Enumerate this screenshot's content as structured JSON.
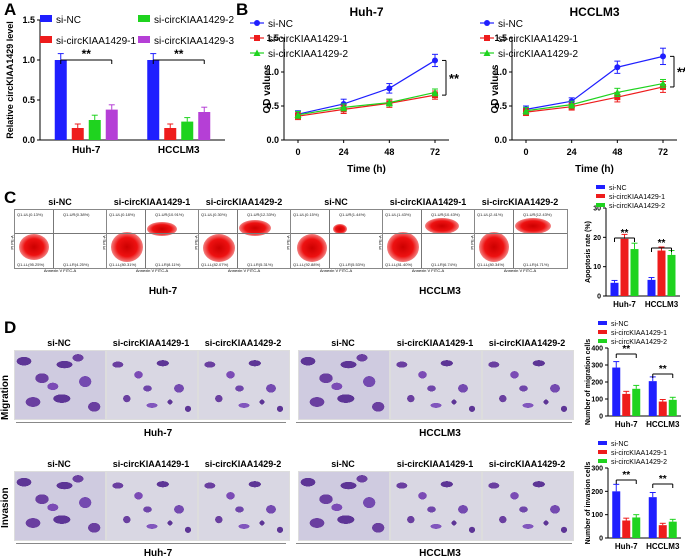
{
  "panels": {
    "A": "A",
    "B": "B",
    "C": "C",
    "D": "D"
  },
  "colors": {
    "si_nc": "#1f1fff",
    "kiaa1": "#ee1c1c",
    "kiaa2": "#1fd31f",
    "kiaa3": "#b53fd6"
  },
  "sig": "**",
  "chart_data": [
    {
      "id": "A",
      "type": "bar",
      "ylabel": "Relative circKIAA1429 level",
      "ylim": [
        0,
        1.5
      ],
      "yticks": [
        "0.0",
        "0.5",
        "1.0",
        "1.5"
      ],
      "categories": [
        "Huh-7",
        "HCCLM3"
      ],
      "legend": [
        "si-NC",
        "si-circKIAA1429-1",
        "si-circKIAA1429-2",
        "si-circKIAA1429-3"
      ],
      "series": [
        {
          "name": "si-NC",
          "values": [
            1.0,
            1.0
          ],
          "err": [
            0.08,
            0.08
          ]
        },
        {
          "name": "si-circKIAA1429-1",
          "values": [
            0.15,
            0.15
          ],
          "err": [
            0.05,
            0.05
          ]
        },
        {
          "name": "si-circKIAA1429-2",
          "values": [
            0.25,
            0.23
          ],
          "err": [
            0.06,
            0.05
          ]
        },
        {
          "name": "si-circKIAA1429-3",
          "values": [
            0.38,
            0.35
          ],
          "err": [
            0.06,
            0.06
          ]
        }
      ]
    },
    {
      "id": "B1",
      "type": "line",
      "title": "Huh-7",
      "xlabel": "Time (h)",
      "ylabel": "OD values",
      "ylim": [
        0,
        1.5
      ],
      "yticks": [
        "0.0",
        "0.5",
        "1.0",
        "1.5"
      ],
      "x": [
        "0",
        "24",
        "48",
        "72"
      ],
      "legend": [
        "si-NC",
        "si-circKIAA1429-1",
        "si-circKIAA1429-2"
      ],
      "series": [
        {
          "name": "si-NC",
          "values": [
            0.38,
            0.53,
            0.76,
            1.17
          ],
          "err": [
            0.05,
            0.07,
            0.07,
            0.09
          ]
        },
        {
          "name": "si-circKIAA1429-1",
          "values": [
            0.35,
            0.45,
            0.54,
            0.66
          ],
          "err": [
            0.05,
            0.06,
            0.06,
            0.06
          ]
        },
        {
          "name": "si-circKIAA1429-2",
          "values": [
            0.37,
            0.48,
            0.55,
            0.7
          ],
          "err": [
            0.05,
            0.05,
            0.05,
            0.05
          ]
        }
      ]
    },
    {
      "id": "B2",
      "type": "line",
      "title": "HCCLM3",
      "xlabel": "Time (h)",
      "ylabel": "OD values",
      "ylim": [
        0,
        1.5
      ],
      "yticks": [
        "0.0",
        "0.5",
        "1.0",
        "1.5"
      ],
      "x": [
        "0",
        "24",
        "48",
        "72"
      ],
      "legend": [
        "si-NC",
        "si-circKIAA1429-1",
        "si-circKIAA1429-2"
      ],
      "series": [
        {
          "name": "si-NC",
          "values": [
            0.45,
            0.57,
            1.07,
            1.23
          ],
          "err": [
            0.05,
            0.05,
            0.09,
            0.12
          ]
        },
        {
          "name": "si-circKIAA1429-1",
          "values": [
            0.41,
            0.49,
            0.63,
            0.78
          ],
          "err": [
            0.05,
            0.05,
            0.07,
            0.08
          ]
        },
        {
          "name": "si-circKIAA1429-2",
          "values": [
            0.43,
            0.52,
            0.7,
            0.83
          ],
          "err": [
            0.05,
            0.05,
            0.06,
            0.06
          ]
        }
      ]
    },
    {
      "id": "C",
      "type": "bar",
      "ylabel": "Apoptosis rate (%)",
      "ylim": [
        0,
        30
      ],
      "yticks": [
        "0",
        "10",
        "20",
        "30"
      ],
      "categories": [
        "Huh-7",
        "HCCLM3"
      ],
      "legend": [
        "si-NC",
        "si-circKIAA1429-1",
        "si-circKIAA1429-2"
      ],
      "series": [
        {
          "name": "si-NC",
          "values": [
            4.5,
            5.5
          ],
          "err": [
            0.8,
            0.8
          ]
        },
        {
          "name": "si-circKIAA1429-1",
          "values": [
            19.5,
            15.5
          ],
          "err": [
            1.5,
            1.2
          ]
        },
        {
          "name": "si-circKIAA1429-2",
          "values": [
            16,
            14
          ],
          "err": [
            2.0,
            1.5
          ]
        }
      ]
    },
    {
      "id": "D1",
      "type": "bar",
      "ylabel": "Number of migration cells",
      "ylim": [
        0,
        400
      ],
      "yticks": [
        "0",
        "100",
        "200",
        "300",
        "400"
      ],
      "categories": [
        "Huh-7",
        "HCCLM3"
      ],
      "legend": [
        "si-NC",
        "si-circKIAA1429-1",
        "si-circKIAA1429-2"
      ],
      "series": [
        {
          "name": "si-NC",
          "values": [
            285,
            205
          ],
          "err": [
            35,
            25
          ]
        },
        {
          "name": "si-circKIAA1429-1",
          "values": [
            130,
            85
          ],
          "err": [
            15,
            12
          ]
        },
        {
          "name": "si-circKIAA1429-2",
          "values": [
            160,
            95
          ],
          "err": [
            20,
            15
          ]
        }
      ]
    },
    {
      "id": "D2",
      "type": "bar",
      "ylabel": "Number of invasion cells",
      "ylim": [
        0,
        300
      ],
      "yticks": [
        "0",
        "100",
        "200",
        "300"
      ],
      "categories": [
        "Huh-7",
        "HCCLM3"
      ],
      "legend": [
        "si-NC",
        "si-circKIAA1429-1",
        "si-circKIAA1429-2"
      ],
      "series": [
        {
          "name": "si-NC",
          "values": [
            200,
            175
          ],
          "err": [
            30,
            20
          ]
        },
        {
          "name": "si-circKIAA1429-1",
          "values": [
            75,
            55
          ],
          "err": [
            10,
            8
          ]
        },
        {
          "name": "si-circKIAA1429-2",
          "values": [
            88,
            70
          ],
          "err": [
            12,
            10
          ]
        }
      ]
    }
  ],
  "flow": {
    "titles": [
      "si-NC",
      "si-circKIAA1429-1",
      "si-circKIAA1429-2",
      "si-NC",
      "si-circKIAA1429-1",
      "si-circKIAA1429-2"
    ],
    "quadrants": [
      [
        "Q1-UL(0.13%)",
        "Q1-UR(0.38%)",
        "Q1-LL(95.25%)",
        "Q1-LR(4.25%)"
      ],
      [
        "Q1-UL(0.18%)",
        "Q1-UR(10.91%)",
        "Q1-LL(80.31%)",
        "Q1-LR(8.11%)"
      ],
      [
        "Q1-UL(0.30%)",
        "Q1-UR(12.33%)",
        "Q1-LL(82.07%)",
        "Q1-LR(5.31%)"
      ],
      [
        "Q1-UL(0.15%)",
        "Q1-UR(1.44%)",
        "Q1-LL(92.88%)",
        "Q1-LR(5.53%)"
      ],
      [
        "Q1-UL(1.43%)",
        "Q1-UR(10.43%)",
        "Q1-LL(81.40%)",
        "Q1-LR(6.74%)"
      ],
      [
        "Q1-UL(2.41%)",
        "Q1-UR(12.43%)",
        "Q1-LL(80.34%)",
        "Q1-LR(4.71%)"
      ]
    ],
    "xaxis": "Annexin V FITC-A",
    "yaxis": "PI PE-A",
    "groups": [
      "Huh-7",
      "HCCLM3"
    ]
  },
  "micro": {
    "titles": [
      "si-NC",
      "si-circKIAA1429-1",
      "si-circKIAA1429-2",
      "si-NC",
      "si-circKIAA1429-1",
      "si-circKIAA1429-2"
    ],
    "rows": [
      "Migration",
      "Invasion"
    ],
    "groups": [
      "Huh-7",
      "HCCLM3"
    ]
  }
}
